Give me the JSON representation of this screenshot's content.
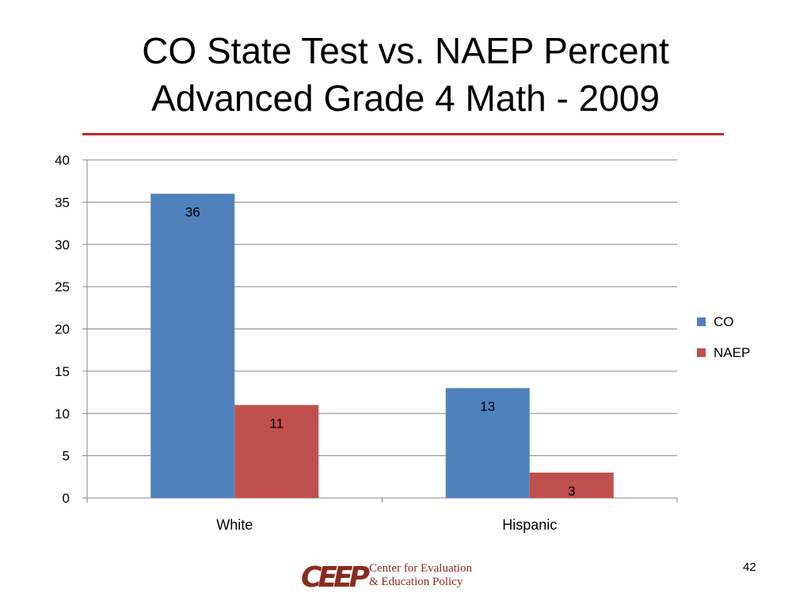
{
  "slide": {
    "title_line1": "CO State Test vs. NAEP Percent",
    "title_line2": "Advanced Grade 4 Math - 2009",
    "page_number": "42",
    "rule_color": "#c0282e"
  },
  "logo": {
    "mark": "CEEP",
    "line1": "Center for Evaluation",
    "line2": "& Education Policy",
    "color": "#8b2a1f"
  },
  "chart_data": {
    "type": "bar",
    "title": "",
    "xlabel": "",
    "ylabel": "",
    "categories": [
      "White",
      "Hispanic"
    ],
    "series": [
      {
        "name": "CO",
        "values": [
          36,
          13
        ],
        "color": "#4f81bd"
      },
      {
        "name": "NAEP",
        "values": [
          11,
          3
        ],
        "color": "#c0504d"
      }
    ],
    "ylim": [
      0,
      40
    ],
    "yticks": [
      0,
      5,
      10,
      15,
      20,
      25,
      30,
      35,
      40
    ],
    "data_labels": true,
    "grid": true,
    "legend": "right"
  }
}
